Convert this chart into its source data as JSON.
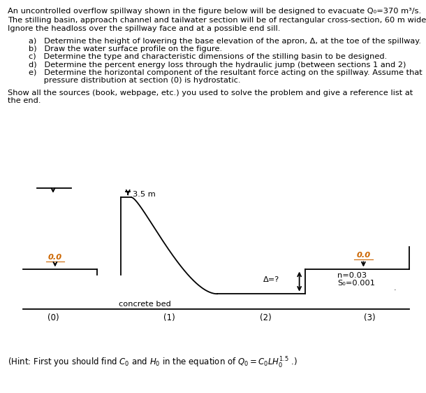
{
  "para1": "An uncontrolled overflow spillway shown in the figure below will be designed to evacuate Q₀=370 m³/s.",
  "para2": "The stilling basin, approach channel and tailwater section will be of rectangular cross-section, 60 m wide.",
  "para3": "Ignore the headloss over the spillway face and at a possible end sill.",
  "item_a": "a)   Determine the height of lowering the base elevation of the apron, Δ, at the toe of the spillway.",
  "item_b": "b)   Draw the water surface profile on the figure.",
  "item_c": "c)   Determine the type and characteristic dimensions of the stilling basin to be designed.",
  "item_d": "d)   Determine the percent energy loss through the hydraulic jump (between sections 1 and 2)",
  "item_e1": "e)   Determine the horizontal component of the resultant force acting on the spillway. Assume that",
  "item_e2": "      pressure distribution at section (0) is hydrostatic.",
  "show1": "Show all the sources (book, webpage, etc.) you used to solve the problem and give a reference list at",
  "show2": "the end.",
  "label_35m": "3.5 m",
  "label_00_left": "0.0",
  "label_00_right": "0.0",
  "label_delta": "Δ=?",
  "label_n": "n=0.03",
  "label_S0": "S₀=0.001",
  "label_dot": ".",
  "label_concrete": "concrete bed",
  "section_labels": [
    "(0)",
    "(1)",
    "(2)",
    "(3)"
  ],
  "bg_color": "#ffffff",
  "text_color": "#000000",
  "line_color": "#000000",
  "orange_color": "#cc6600",
  "blue_color": "#0066cc"
}
